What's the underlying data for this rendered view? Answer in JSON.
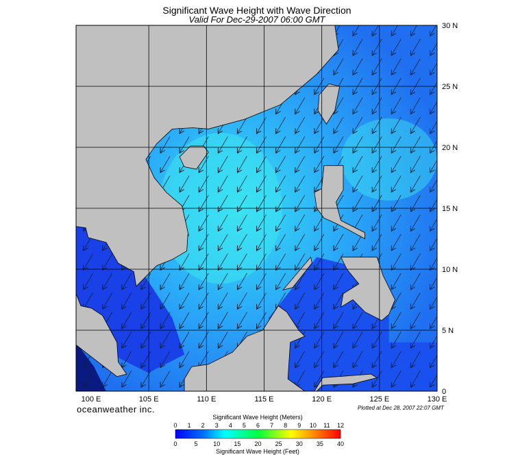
{
  "header": {
    "title": "Significant Wave Height with Wave Direction",
    "subtitle": "Valid For Dec-29-2007 06:00 GMT"
  },
  "map": {
    "lat_labels": [
      "30 N",
      "25 N",
      "20 N",
      "15 N",
      "10 N",
      "5 N",
      "0"
    ],
    "lon_labels": [
      "100 E",
      "105 E",
      "110 E",
      "115 E",
      "120 E",
      "125 E",
      "130 E"
    ]
  },
  "footer": {
    "brand": "oceanweather inc.",
    "plotted": "Plotted at Dec 28, 2007 22:07 GMT"
  },
  "colorbar": {
    "meters_title": "Significant Wave Height (Meters)",
    "meters_ticks": [
      0,
      1,
      2,
      3,
      4,
      5,
      6,
      7,
      8,
      9,
      10,
      11,
      12
    ],
    "feet_ticks": [
      0,
      5,
      10,
      15,
      20,
      25,
      30,
      35,
      40
    ],
    "feet_title": "Significant Wave Height (Feet)"
  }
}
